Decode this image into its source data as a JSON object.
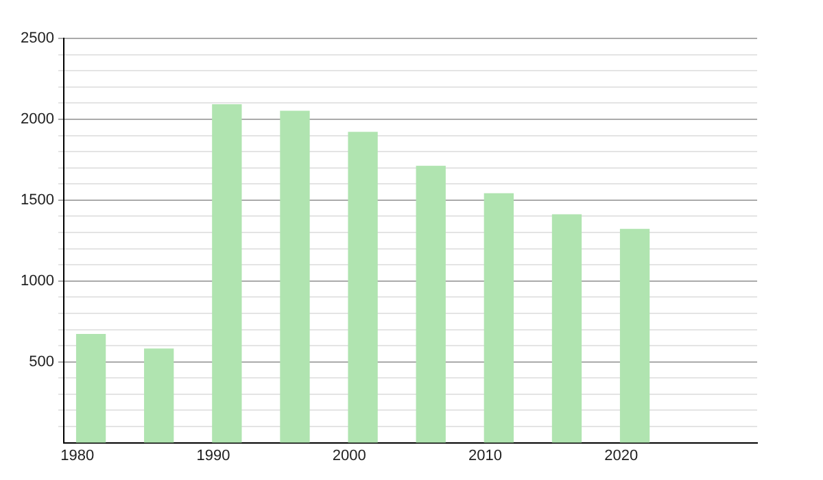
{
  "chart_data": {
    "type": "bar",
    "x": [
      1981,
      1986,
      1991,
      1996,
      2001,
      2006,
      2011,
      2016,
      2021
    ],
    "values": [
      670,
      580,
      2090,
      2050,
      1920,
      1710,
      1540,
      1410,
      1320
    ],
    "color": "#b0e4b0",
    "xlim": [
      1979,
      2030
    ],
    "xticks": [
      1980,
      1990,
      2000,
      2010,
      2020
    ],
    "ylim": [
      0,
      2500
    ],
    "yticks": [
      {
        "value": 100,
        "label": null
      },
      {
        "value": 200,
        "label": null
      },
      {
        "value": 300,
        "label": null
      },
      {
        "value": 400,
        "label": null
      },
      500,
      {
        "value": 600,
        "label": null
      },
      {
        "value": 700,
        "label": null
      },
      {
        "value": 800,
        "label": null
      },
      {
        "value": 900,
        "label": null
      },
      1000,
      {
        "value": 1100,
        "label": null
      },
      {
        "value": 1200,
        "label": null
      },
      {
        "value": 1300,
        "label": null
      },
      {
        "value": 1400,
        "label": null
      },
      1500,
      {
        "value": 1600,
        "label": null
      },
      {
        "value": 1700,
        "label": null
      },
      {
        "value": 1800,
        "label": null
      },
      {
        "value": 1900,
        "label": null
      },
      2000,
      {
        "value": 2100,
        "label": null
      },
      {
        "value": 2200,
        "label": null
      },
      {
        "value": 2300,
        "label": null
      },
      {
        "value": 2400,
        "label": null
      },
      2500
    ],
    "grid": "y"
  }
}
